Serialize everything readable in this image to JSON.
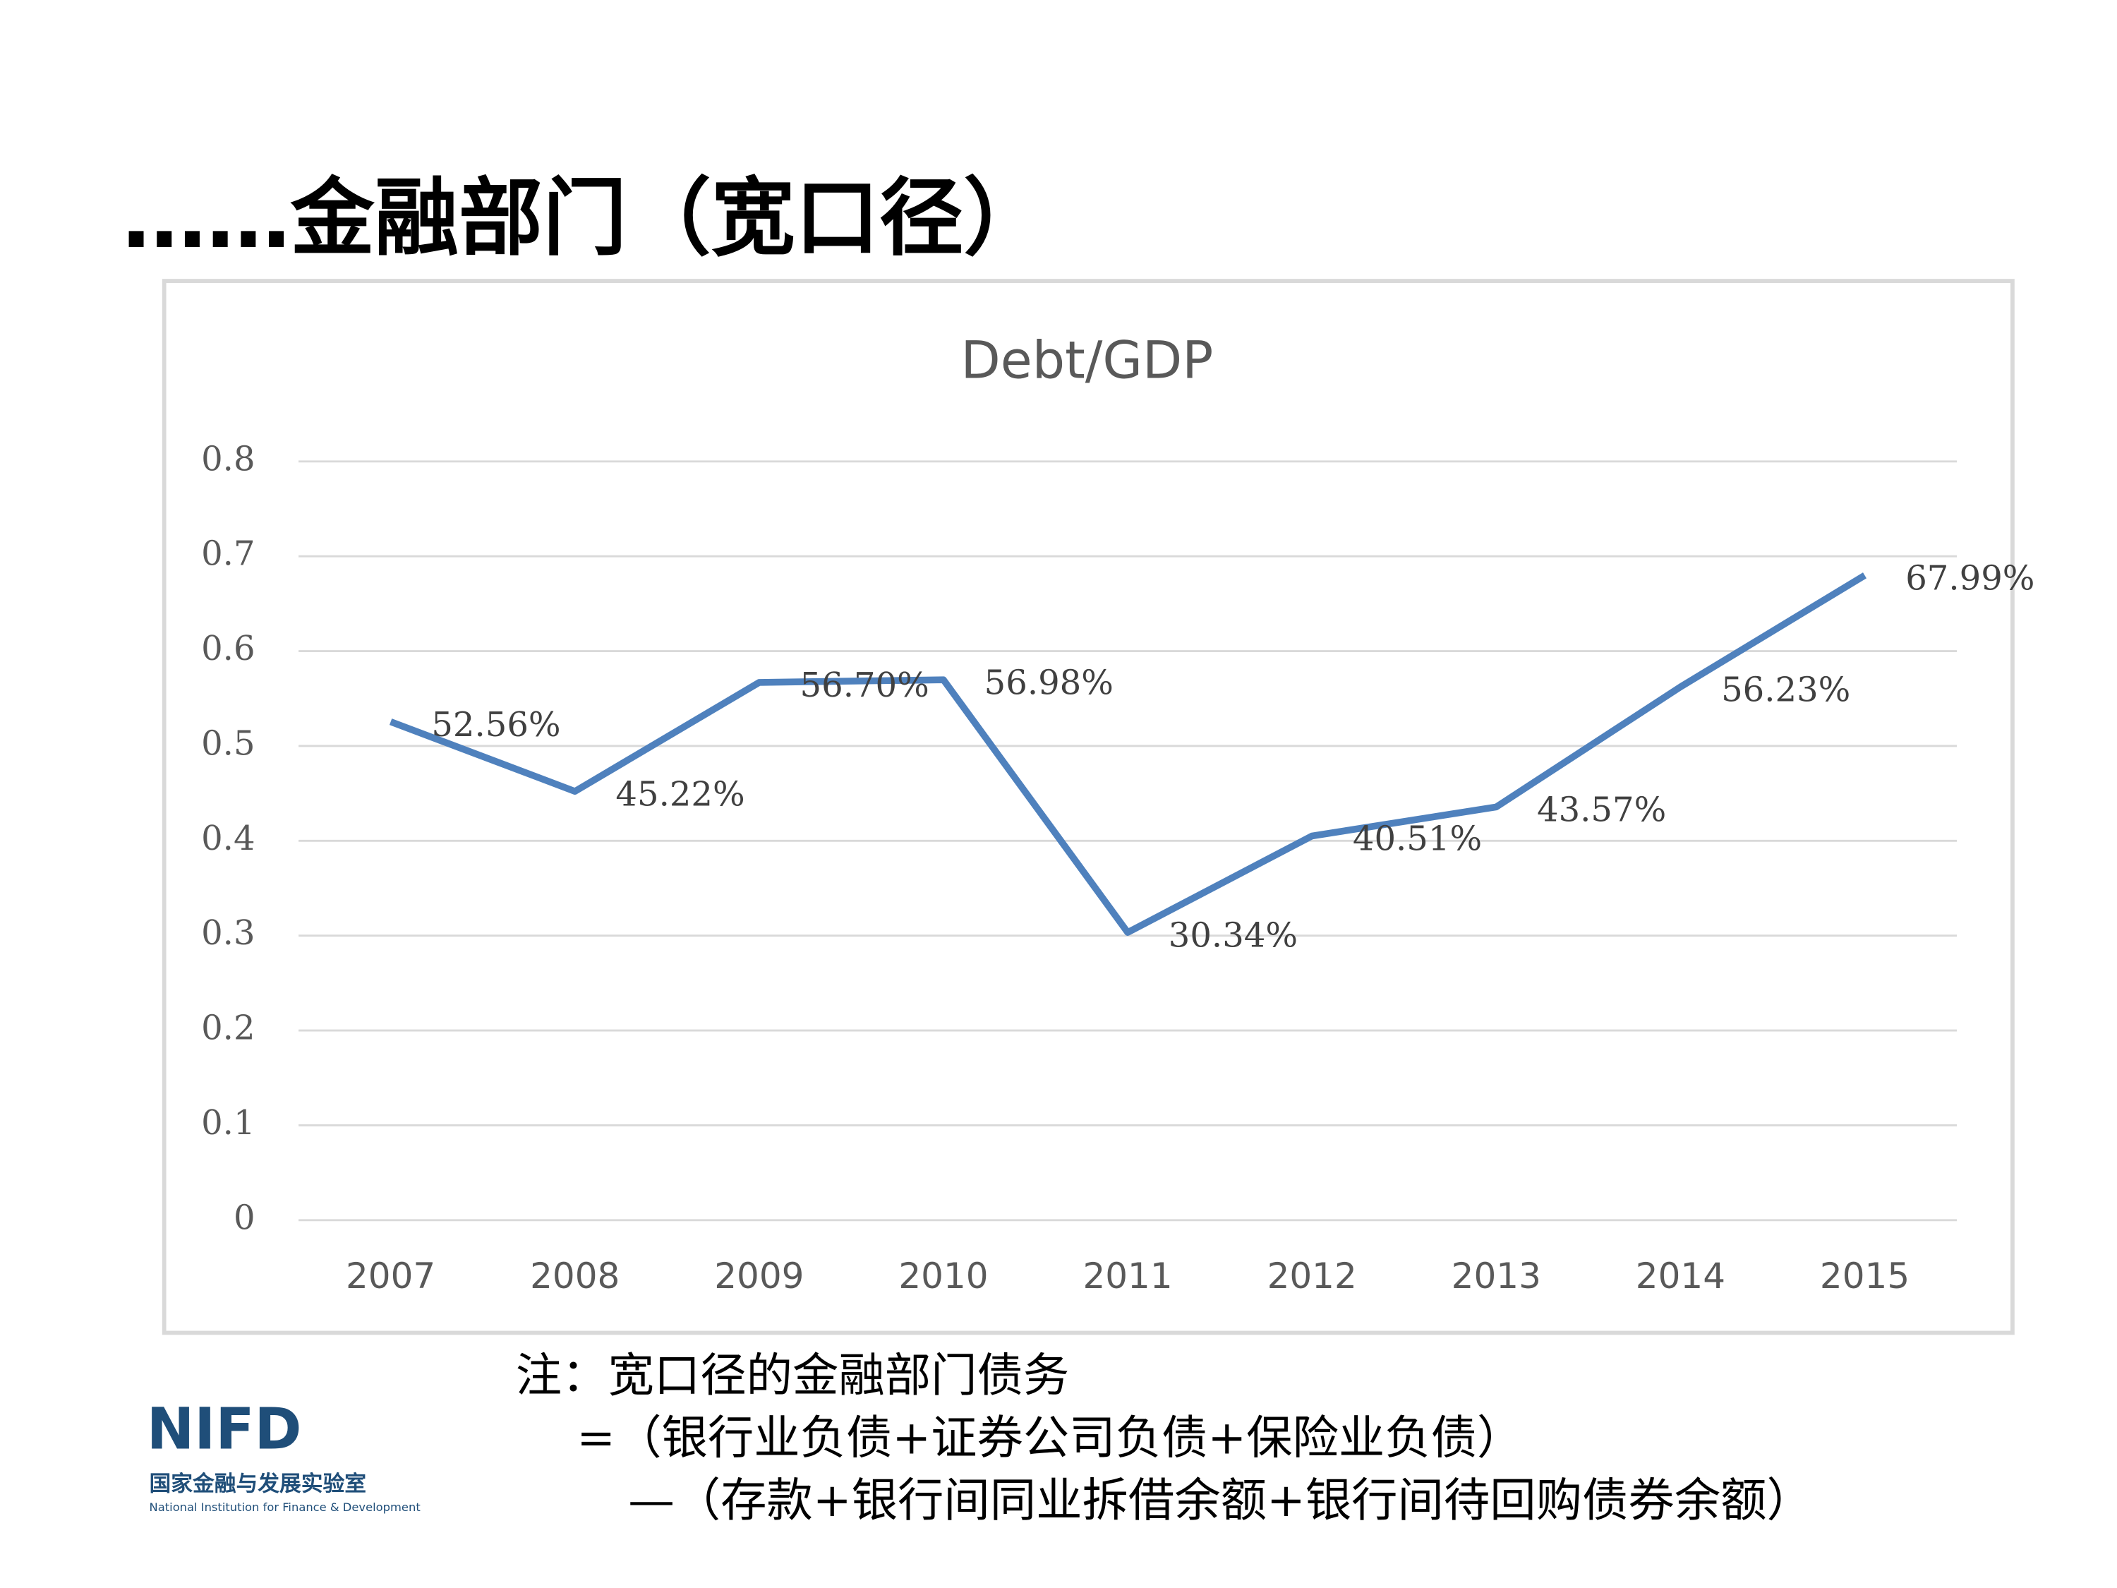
{
  "header": {
    "title": "……金融部门（宽口径）"
  },
  "chart_data": {
    "type": "line",
    "title": "Debt/GDP",
    "categories": [
      "2007",
      "2008",
      "2009",
      "2010",
      "2011",
      "2012",
      "2013",
      "2014",
      "2015"
    ],
    "values": [
      0.5256,
      0.4522,
      0.567,
      0.5698,
      0.3034,
      0.4051,
      0.4357,
      0.5623,
      0.6799
    ],
    "value_labels": [
      "52.56%",
      "45.22%",
      "56.70%",
      "56.98%",
      "30.34%",
      "40.51%",
      "43.57%",
      "56.23%",
      "67.99%"
    ],
    "color": "#4f81bd",
    "ylim": [
      0,
      0.8
    ],
    "yticks": [
      0,
      0.1,
      0.2,
      0.3,
      0.4,
      0.5,
      0.6,
      0.7,
      0.8
    ],
    "grid": true
  },
  "note": {
    "line1": "注：宽口径的金融部门债务",
    "line2": "=（银行业负债+证券公司负债+保险业负债）",
    "line3": "—（存款+银行间同业拆借余额+银行间待回购债券余额）"
  },
  "logo": {
    "mark": "NIFD",
    "name": "国家金融与发展实验室",
    "english": "National Institution for Finance & Development"
  }
}
